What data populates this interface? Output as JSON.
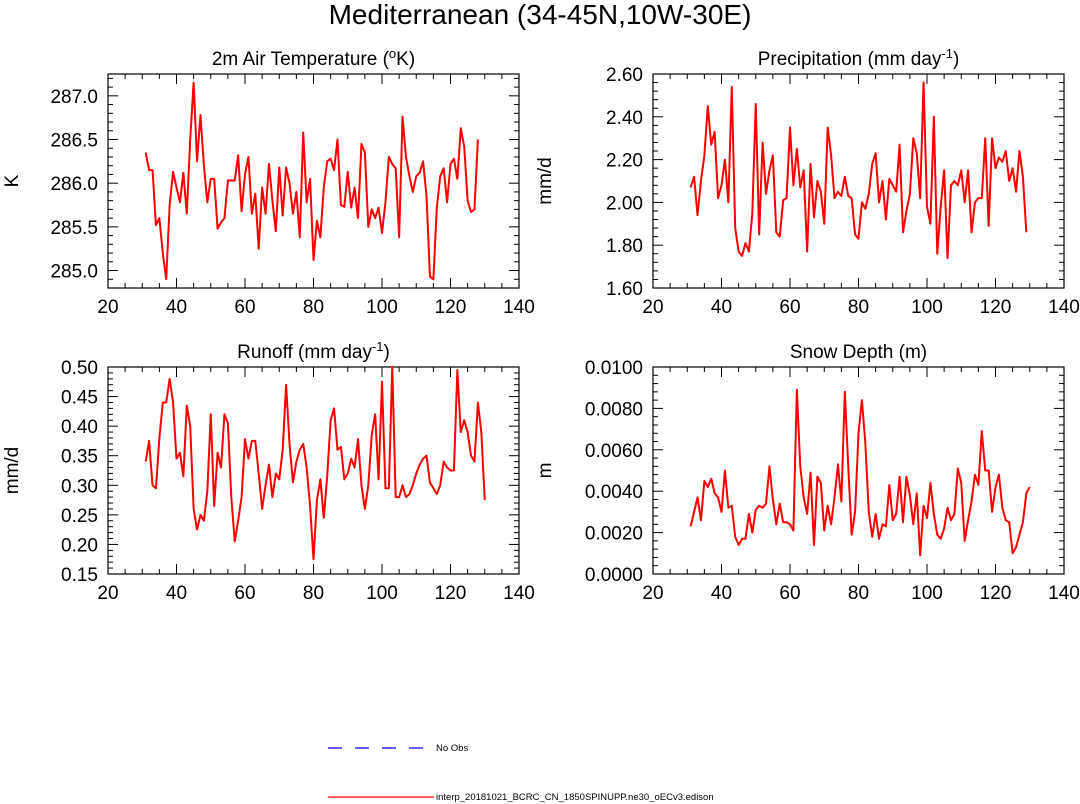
{
  "title": "Mediterranean (34-45N,10W-30E)",
  "colors": {
    "model": "#ff0000",
    "obs": "#0000ff",
    "axis": "#000000"
  },
  "legend": {
    "obs_label": "No Obs",
    "model_label": "interp_20181021_BCRC_CN_1850SPINUPP.ne30_oECv3.edison"
  },
  "chart_data": [
    {
      "type": "line",
      "title_main": "2m Air Temperature (",
      "title_sup": "o",
      "title_after": "K)",
      "ylabel": "K",
      "xlim": [
        20,
        140
      ],
      "xticks": [
        "20",
        "40",
        "60",
        "80",
        "100",
        "120",
        "140"
      ],
      "ylim": [
        284.8,
        287.25
      ],
      "yticks": [
        "285.0",
        "285.5",
        "286.0",
        "286.5",
        "287.0"
      ],
      "x_start": 31,
      "series": [
        {
          "name": "model",
          "values": [
            286.35,
            286.15,
            286.15,
            285.52,
            285.6,
            285.2,
            284.9,
            285.75,
            286.13,
            285.95,
            285.78,
            286.12,
            285.65,
            286.5,
            287.15,
            286.25,
            286.78,
            286.2,
            285.78,
            286.05,
            286.05,
            285.48,
            285.55,
            285.6,
            286.03,
            286.03,
            286.03,
            286.32,
            285.68,
            286.1,
            286.3,
            285.65,
            285.88,
            285.25,
            285.95,
            285.65,
            286.22,
            285.8,
            285.45,
            286.18,
            285.63,
            286.18,
            286.0,
            285.65,
            285.9,
            285.38,
            286.58,
            285.78,
            286.05,
            285.12,
            285.57,
            285.38,
            285.95,
            286.25,
            286.28,
            286.15,
            286.5,
            285.75,
            285.73,
            286.13,
            285.72,
            285.95,
            285.6,
            286.45,
            286.35,
            285.5,
            285.7,
            285.6,
            285.72,
            285.43,
            285.78,
            286.3,
            286.22,
            286.17,
            285.38,
            286.76,
            286.3,
            286.08,
            285.9,
            286.08,
            286.12,
            286.25,
            285.85,
            284.93,
            284.9,
            285.72,
            286.08,
            286.17,
            285.78,
            286.22,
            286.28,
            286.05,
            286.63,
            286.42,
            285.8,
            285.67,
            285.7,
            286.5
          ]
        }
      ]
    },
    {
      "type": "line",
      "title_main": "Precipitation (mm day",
      "title_sup": "-1",
      "title_after": ")",
      "ylabel": "mm/d",
      "xlim": [
        20,
        140
      ],
      "xticks": [
        "20",
        "40",
        "60",
        "80",
        "100",
        "120",
        "140"
      ],
      "ylim": [
        1.6,
        2.6
      ],
      "yticks": [
        "1.60",
        "1.80",
        "2.00",
        "2.20",
        "2.40",
        "2.60"
      ],
      "x_start": 31,
      "series": [
        {
          "name": "model",
          "values": [
            2.07,
            2.12,
            1.94,
            2.1,
            2.22,
            2.45,
            2.27,
            2.33,
            2.02,
            2.08,
            2.2,
            2.0,
            2.54,
            1.88,
            1.77,
            1.75,
            1.81,
            1.77,
            1.95,
            2.46,
            1.85,
            2.28,
            2.04,
            2.15,
            2.22,
            1.86,
            1.84,
            2.01,
            2.02,
            2.35,
            2.08,
            2.25,
            2.07,
            2.15,
            1.77,
            2.18,
            1.93,
            2.1,
            2.05,
            1.9,
            2.35,
            2.22,
            2.02,
            2.05,
            2.03,
            2.12,
            2.03,
            2.02,
            1.85,
            1.83,
            2.0,
            1.97,
            2.04,
            2.18,
            2.23,
            2.0,
            2.1,
            1.92,
            2.11,
            2.08,
            2.05,
            2.27,
            1.86,
            1.96,
            2.04,
            2.3,
            2.23,
            2.02,
            2.56,
            1.98,
            1.9,
            2.4,
            1.76,
            1.98,
            2.15,
            1.74,
            2.08,
            2.1,
            2.08,
            2.15,
            2.0,
            2.15,
            1.86,
            2.0,
            2.02,
            2.02,
            2.3,
            1.89,
            2.3,
            2.16,
            2.21,
            2.19,
            2.24,
            2.1,
            2.16,
            2.05,
            2.24,
            2.12,
            1.86
          ]
        }
      ]
    },
    {
      "type": "line",
      "title_main": "Runoff (mm day",
      "title_sup": "-1",
      "title_after": ")",
      "ylabel": "mm/d",
      "xlim": [
        20,
        140
      ],
      "xticks": [
        "20",
        "40",
        "60",
        "80",
        "100",
        "120",
        "140"
      ],
      "ylim": [
        0.15,
        0.5
      ],
      "yticks": [
        "0.15",
        "0.20",
        "0.25",
        "0.30",
        "0.35",
        "0.40",
        "0.45",
        "0.50"
      ],
      "x_start": 31,
      "series": [
        {
          "name": "model",
          "values": [
            0.34,
            0.375,
            0.3,
            0.295,
            0.38,
            0.44,
            0.44,
            0.48,
            0.44,
            0.345,
            0.355,
            0.315,
            0.435,
            0.4,
            0.26,
            0.225,
            0.25,
            0.24,
            0.29,
            0.42,
            0.265,
            0.355,
            0.33,
            0.42,
            0.405,
            0.28,
            0.205,
            0.24,
            0.28,
            0.378,
            0.345,
            0.375,
            0.375,
            0.32,
            0.26,
            0.3,
            0.335,
            0.28,
            0.32,
            0.31,
            0.36,
            0.47,
            0.37,
            0.305,
            0.34,
            0.36,
            0.37,
            0.33,
            0.265,
            0.175,
            0.275,
            0.31,
            0.245,
            0.315,
            0.41,
            0.43,
            0.36,
            0.365,
            0.31,
            0.32,
            0.345,
            0.33,
            0.378,
            0.3,
            0.26,
            0.3,
            0.385,
            0.42,
            0.31,
            0.475,
            0.295,
            0.295,
            0.5,
            0.28,
            0.28,
            0.3,
            0.28,
            0.285,
            0.3,
            0.32,
            0.335,
            0.345,
            0.35,
            0.305,
            0.295,
            0.285,
            0.3,
            0.34,
            0.33,
            0.325,
            0.325,
            0.495,
            0.39,
            0.41,
            0.39,
            0.35,
            0.34,
            0.44,
            0.39,
            0.275
          ]
        }
      ]
    },
    {
      "type": "line",
      "title_main": "Snow Depth (m)",
      "title_sup": "",
      "title_after": "",
      "ylabel": "m",
      "xlim": [
        20,
        140
      ],
      "xticks": [
        "20",
        "40",
        "60",
        "80",
        "100",
        "120",
        "140"
      ],
      "ylim": [
        0.0,
        0.01
      ],
      "yticks": [
        "0.0000",
        "0.0020",
        "0.0040",
        "0.0060",
        "0.0080",
        "0.0100"
      ],
      "x_start": 31,
      "series": [
        {
          "name": "model",
          "values": [
            0.0023,
            0.003,
            0.0037,
            0.0026,
            0.0045,
            0.0042,
            0.0046,
            0.0039,
            0.0037,
            0.003,
            0.005,
            0.0032,
            0.0033,
            0.0018,
            0.0014,
            0.0017,
            0.0017,
            0.0029,
            0.002,
            0.0031,
            0.0033,
            0.0032,
            0.0034,
            0.0052,
            0.0036,
            0.0024,
            0.0034,
            0.0025,
            0.0025,
            0.0024,
            0.0021,
            0.0089,
            0.0052,
            0.0037,
            0.0029,
            0.0049,
            0.0014,
            0.0047,
            0.0044,
            0.0021,
            0.0033,
            0.0024,
            0.0037,
            0.0053,
            0.0035,
            0.0088,
            0.0052,
            0.0019,
            0.003,
            0.0068,
            0.0084,
            0.0063,
            0.003,
            0.0018,
            0.0029,
            0.0017,
            0.0024,
            0.0023,
            0.0043,
            0.0026,
            0.0029,
            0.0047,
            0.0025,
            0.0047,
            0.0038,
            0.0024,
            0.0039,
            0.0009,
            0.0033,
            0.0027,
            0.0044,
            0.0029,
            0.0019,
            0.0017,
            0.0022,
            0.0032,
            0.0026,
            0.0029,
            0.0051,
            0.0044,
            0.0016,
            0.0026,
            0.0035,
            0.0048,
            0.0043,
            0.0069,
            0.005,
            0.005,
            0.003,
            0.0042,
            0.0048,
            0.0032,
            0.0026,
            0.0025,
            0.001,
            0.0013,
            0.0019,
            0.0025,
            0.0039,
            0.0042
          ]
        }
      ]
    }
  ]
}
